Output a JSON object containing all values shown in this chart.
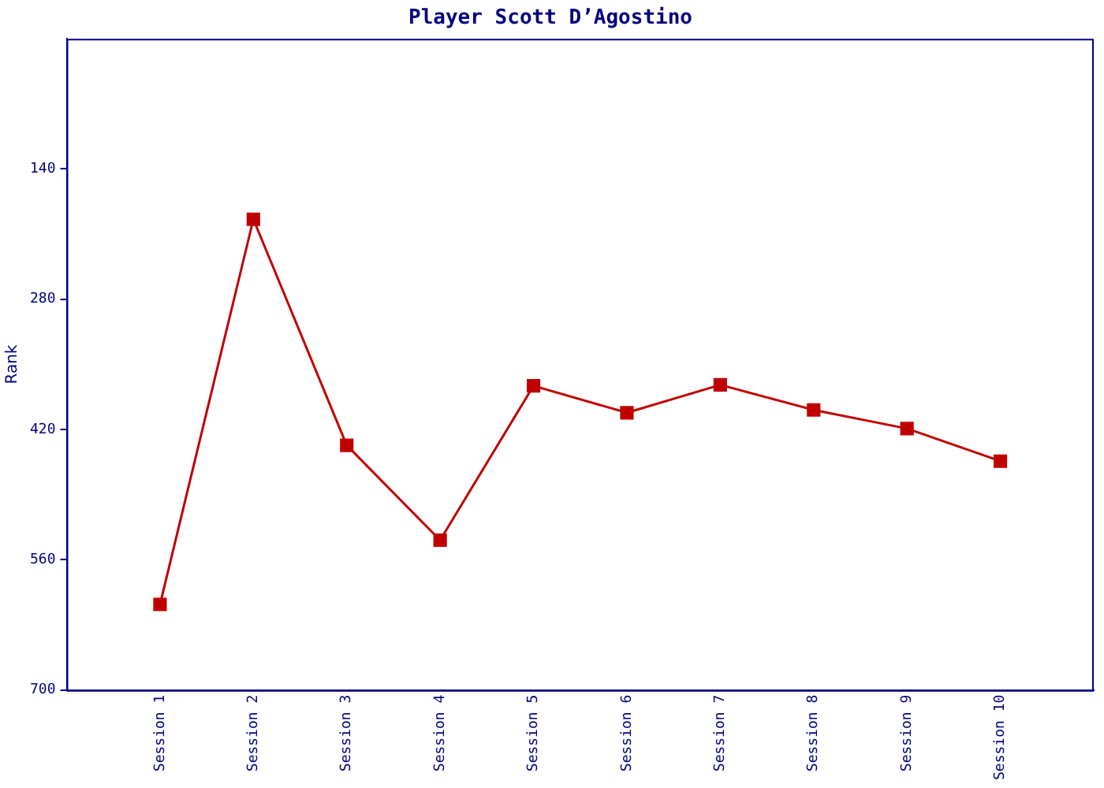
{
  "chart_data": {
    "type": "line",
    "title": "Player Scott D’Agostino",
    "ylabel": "Rank",
    "categories": [
      "Session 1",
      "Session 2",
      "Session 3",
      "Session 4",
      "Session 5",
      "Session 6",
      "Session 7",
      "Session 8",
      "Session 9",
      "Session 10"
    ],
    "series": [
      {
        "color": "#c00000",
        "values": [
          608,
          194,
          437,
          539,
          373,
          402,
          372,
          399,
          419,
          454
        ]
      }
    ],
    "ylim": [
      700,
      0
    ],
    "yticks": [
      140,
      280,
      420,
      560,
      700
    ],
    "grid": false,
    "legend": false,
    "marker": "square",
    "line_style": "solid"
  }
}
